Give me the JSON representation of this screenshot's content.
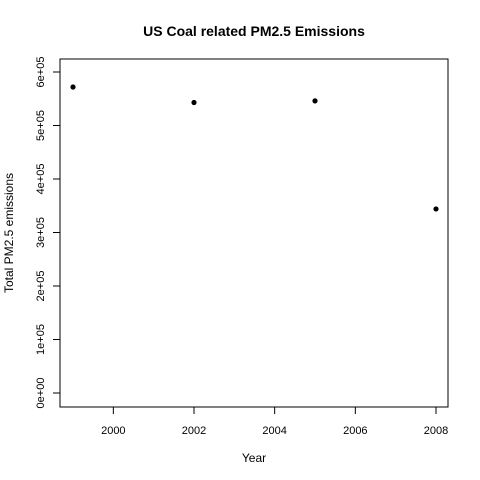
{
  "chart_data": {
    "type": "scatter",
    "title": "US Coal related PM2.5 Emissions",
    "xlabel": "Year",
    "ylabel": "Total PM2.5 emissions",
    "xlim": [
      1999,
      2008
    ],
    "ylim": [
      0,
      600000
    ],
    "x_ticks": [
      2000,
      2002,
      2004,
      2006,
      2008
    ],
    "x_tick_labels": [
      "2000",
      "2002",
      "2004",
      "2006",
      "2008"
    ],
    "y_ticks": [
      0,
      100000,
      200000,
      300000,
      400000,
      500000,
      600000
    ],
    "y_tick_labels": [
      "0e+00",
      "1e+05",
      "2e+05",
      "3e+05",
      "4e+05",
      "5e+05",
      "6e+05"
    ],
    "x": [
      1999,
      2002,
      2005,
      2008
    ],
    "y": [
      572000,
      543000,
      546000,
      344000
    ],
    "grid": false,
    "point_color": "#000000"
  }
}
